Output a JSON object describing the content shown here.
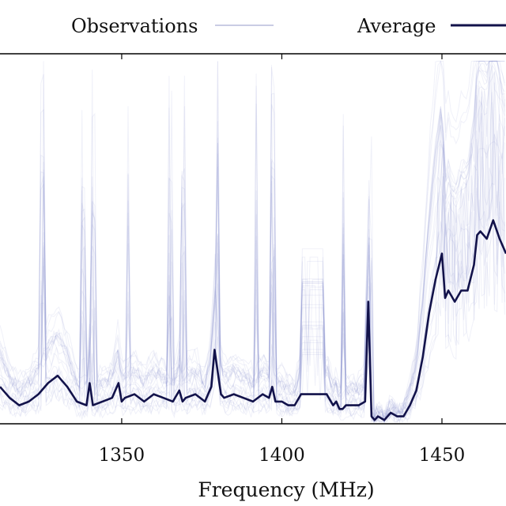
{
  "chart_data": {
    "type": "line",
    "xlabel": "Frequency (MHz)",
    "ylabel": "",
    "xlim": [
      1312,
      1470
    ],
    "ylim": [
      0,
      10
    ],
    "grid": false,
    "legend_placement": "top",
    "x_ticks": [
      1350,
      1400,
      1450
    ],
    "x_tick_labels": [
      "1350",
      "1400",
      "1450"
    ],
    "legend": [
      {
        "label": "Observations",
        "style": "thin-light"
      },
      {
        "label": "Average",
        "style": "thick-dark"
      }
    ],
    "colors": {
      "observations": "#8b8fcf",
      "average": "#12124a",
      "axis": "#000000"
    },
    "series": [
      {
        "name": "Average",
        "x": [
          1312,
          1315,
          1318,
          1321,
          1324,
          1327,
          1330,
          1333,
          1336,
          1339,
          1340,
          1341,
          1344,
          1347,
          1349,
          1350,
          1351,
          1354,
          1357,
          1360,
          1363,
          1366,
          1368,
          1369,
          1370,
          1373,
          1376,
          1378,
          1379,
          1380,
          1381,
          1382,
          1385,
          1388,
          1391,
          1394,
          1396,
          1397,
          1398,
          1400,
          1402,
          1404,
          1406,
          1408,
          1410,
          1412,
          1414,
          1416,
          1417,
          1418,
          1419,
          1420,
          1422,
          1424,
          1426,
          1427,
          1428,
          1429,
          1430,
          1432,
          1434,
          1436,
          1438,
          1440,
          1442,
          1444,
          1446,
          1448,
          1450,
          1451,
          1452,
          1454,
          1456,
          1458,
          1460,
          1461,
          1462,
          1464,
          1466,
          1468,
          1470
        ],
        "y": [
          1.0,
          0.7,
          0.5,
          0.6,
          0.8,
          1.1,
          1.3,
          1.0,
          0.6,
          0.5,
          1.1,
          0.5,
          0.6,
          0.7,
          1.1,
          0.6,
          0.7,
          0.8,
          0.6,
          0.8,
          0.7,
          0.6,
          0.9,
          0.6,
          0.7,
          0.8,
          0.6,
          1.0,
          2.0,
          1.4,
          0.8,
          0.7,
          0.8,
          0.7,
          0.6,
          0.8,
          0.7,
          1.0,
          0.6,
          0.6,
          0.5,
          0.5,
          0.8,
          0.8,
          0.8,
          0.8,
          0.8,
          0.5,
          0.6,
          0.4,
          0.4,
          0.5,
          0.5,
          0.5,
          0.6,
          3.3,
          0.2,
          0.1,
          0.2,
          0.1,
          0.3,
          0.2,
          0.2,
          0.5,
          0.9,
          1.8,
          3.0,
          3.9,
          4.6,
          3.4,
          3.6,
          3.3,
          3.6,
          3.6,
          4.3,
          5.1,
          5.2,
          5.0,
          5.5,
          5.0,
          4.6
        ]
      }
    ]
  }
}
